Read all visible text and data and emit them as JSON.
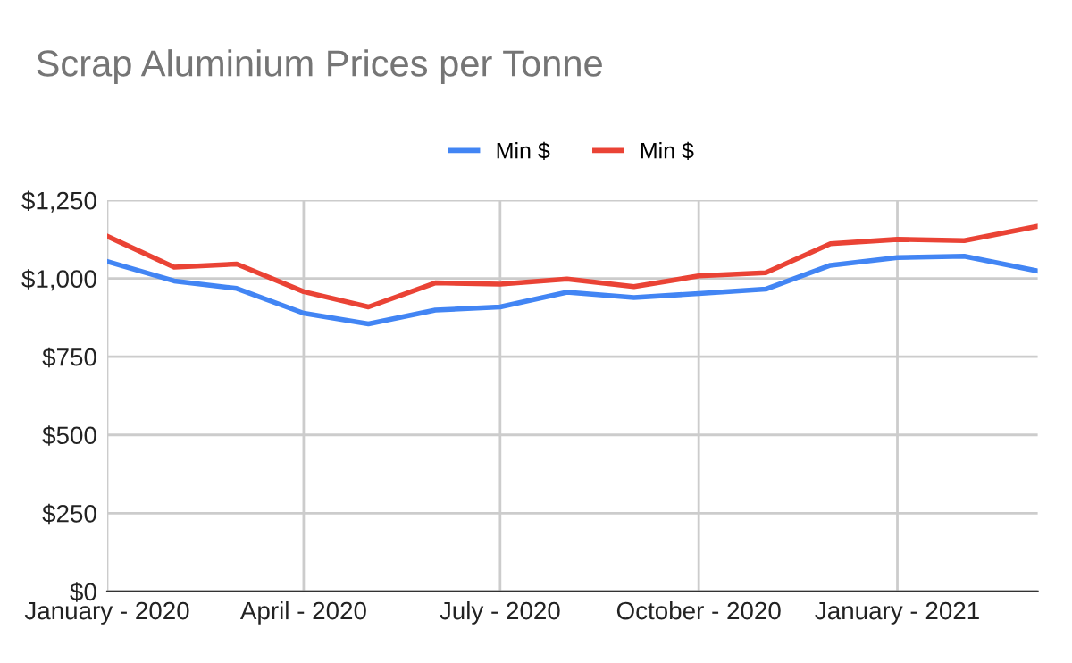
{
  "chart_data": {
    "type": "line",
    "title": "Scrap Aluminium Prices per Tonne",
    "x": [
      "2020-01-01",
      "2020-02-01",
      "2020-03-01",
      "2020-04-01",
      "2020-05-01",
      "2020-06-01",
      "2020-07-01",
      "2020-08-01",
      "2020-09-01",
      "2020-10-01",
      "2020-11-01",
      "2020-12-01",
      "2021-01-01",
      "2021-02-01",
      "2021-03-07"
    ],
    "series": [
      {
        "name": "Min $",
        "color": "#4285f4",
        "values": [
          1054,
          992,
          968,
          889,
          855,
          899,
          909,
          956,
          939,
          952,
          966,
          1042,
          1067,
          1071,
          1024
        ]
      },
      {
        "name": "Min $",
        "color": "#ea4335",
        "values": [
          1135,
          1036,
          1046,
          958,
          909,
          986,
          982,
          998,
          974,
          1008,
          1018,
          1111,
          1125,
          1121,
          1167
        ]
      }
    ],
    "xlim": [
      "2020-01-01",
      "2021-03-07"
    ],
    "xticks": [
      {
        "value": "2020-01-01",
        "label": "January - 2020"
      },
      {
        "value": "2020-04-01",
        "label": "April - 2020"
      },
      {
        "value": "2020-07-01",
        "label": "July - 2020"
      },
      {
        "value": "2020-10-01",
        "label": "October - 2020"
      },
      {
        "value": "2021-01-01",
        "label": "January - 2021"
      }
    ],
    "ylim": [
      0,
      1250
    ],
    "yticks": [
      {
        "value": 0,
        "label": "$0"
      },
      {
        "value": 250,
        "label": "$250"
      },
      {
        "value": 500,
        "label": "$500"
      },
      {
        "value": 750,
        "label": "$750"
      },
      {
        "value": 1000,
        "label": "$1,000"
      },
      {
        "value": 1250,
        "label": "$1,250"
      }
    ],
    "grid": true,
    "legend": "top",
    "marker": "none",
    "line_style": "solid"
  }
}
